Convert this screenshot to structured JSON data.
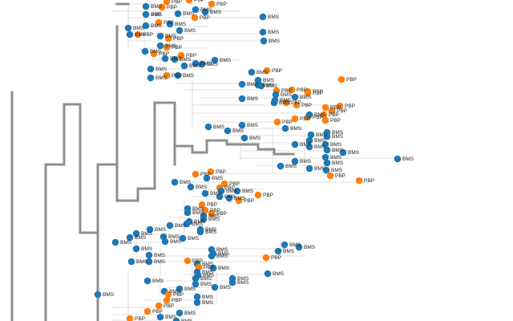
{
  "legend": {
    "BMS": {
      "label": "BMS",
      "color": "#1f77b4"
    },
    "PBP": {
      "label": "PBP",
      "color": "#ff7f0e"
    }
  },
  "tree_colors": {
    "highlight": "#8f8f8f",
    "branch": "#e2e2e2"
  },
  "leaves": [
    "PBP",
    "PBP",
    "PBP",
    "PBP",
    "BMS",
    "BMS",
    "BMS",
    "PBP",
    "BMS",
    "PBP",
    "BMS",
    "BMS",
    "PBP",
    "BMS",
    "BMS",
    "BMS",
    "PBP",
    "BMS",
    "PBP",
    "BMS",
    "BMS",
    "BMS",
    "BMS",
    "PBP",
    "BMS",
    "PBP",
    "BMS",
    "PBP",
    "BMS",
    "BMS",
    "BMS",
    "BMS",
    "BMS",
    "BMS",
    "BMS",
    "BMS",
    "PBP",
    "BMS",
    "PBP",
    "BMS",
    "BMS",
    "BMS",
    "BMS",
    "BMS",
    "PBP",
    "BMS",
    "PBP",
    "PBP",
    "PBP",
    "PBP",
    "BMS",
    "BMS",
    "PBP",
    "PBP",
    "BMS",
    "PBP",
    "PBP",
    "PBP",
    "PBP",
    "BMS",
    "PBP",
    "PBP",
    "PBP",
    "BMS",
    "PBP",
    "BMS",
    "BMS",
    "BMS",
    "BMS",
    "BMS",
    "BMS",
    "BMS",
    "BMS",
    "BMS",
    "BMS",
    "BMS",
    "BMS",
    "BMS",
    "BMS",
    "BMS",
    "BMS",
    "BMS",
    "BMS",
    "BMS",
    "BMS",
    "BMS",
    "PBP",
    "PBP",
    "BMS",
    "PBP",
    "PBP",
    "BMS",
    "PBP",
    "BMS",
    "PBP",
    "BMS",
    "BMS",
    "BMS",
    "PBP",
    "BMS",
    "BMS",
    "PBP",
    "PBP",
    "BMS",
    "PBP",
    "PBP",
    "BMS",
    "BMS",
    "BMS",
    "BMS",
    "BMS",
    "BMS",
    "BMS",
    "BMS",
    "BMS",
    "BMS",
    "BMS",
    "BMS",
    "BMS",
    "BMS",
    "BMS",
    "BMS",
    "BMS",
    "BMS",
    "BMS",
    "BMS",
    "BMS",
    "BMS",
    "BMS",
    "BMS",
    "PBP",
    "BMS",
    "PBP",
    "BMS",
    "PBP",
    "BMS",
    "BMS",
    "BMS",
    "BMS",
    "BMS",
    "BMS",
    "BMS",
    "BMS",
    "BMS",
    "BMS",
    "BMS",
    "BMS",
    "PBP",
    "BMS",
    "PBP",
    "BMS",
    "BMS",
    "PBP",
    "BMS",
    "PBP",
    "BMS",
    "PBP",
    "BMS",
    "PBP",
    "BMS",
    "BMS",
    "PBP",
    "BMS",
    "PBP"
  ]
}
